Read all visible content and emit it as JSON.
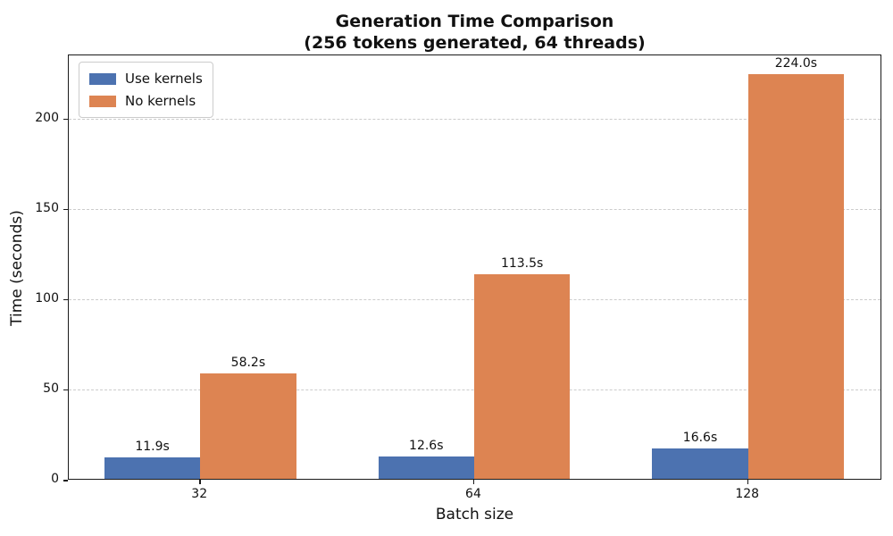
{
  "title": {
    "line1": "Generation Time Comparison",
    "line2": "(256 tokens generated, 64 threads)"
  },
  "chart_data": {
    "type": "bar",
    "title": "Generation Time Comparison\n(256 tokens generated, 64 threads)",
    "xlabel": "Batch size",
    "ylabel": "Time (seconds)",
    "categories": [
      "32",
      "64",
      "128"
    ],
    "series": [
      {
        "name": "Use kernels",
        "color": "#4C72B0",
        "values": [
          11.9,
          12.6,
          16.6
        ],
        "labels": [
          "11.9s",
          "12.6s",
          "16.6s"
        ]
      },
      {
        "name": "No kernels",
        "color": "#DD8452",
        "values": [
          58.2,
          113.5,
          224.0
        ],
        "labels": [
          "58.2s",
          "113.5s",
          "224.0s"
        ]
      }
    ],
    "yticks": [
      0,
      50,
      100,
      150,
      200
    ],
    "ytick_labels": [
      "0",
      "50",
      "100",
      "150",
      "200"
    ],
    "ylim": [
      0,
      235.6
    ],
    "xlim": [
      -0.48,
      2.49
    ],
    "bar_width_data": 0.35,
    "grid": "horizontal-dashed",
    "legend_position": "upper-left",
    "colors": {
      "grid": "#cccccc",
      "spine": "#1a1a1a",
      "background": "#ffffff",
      "text": "#111111"
    }
  }
}
